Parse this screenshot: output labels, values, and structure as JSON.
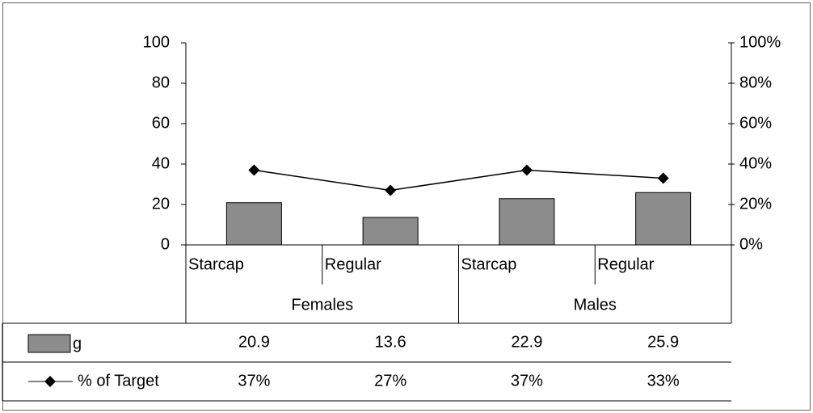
{
  "chart_data": {
    "type": "bar",
    "categories": [
      "Starcap",
      "Regular",
      "Starcap",
      "Regular"
    ],
    "groups": [
      "Females",
      "Males"
    ],
    "series": [
      {
        "name": "g",
        "type": "bar",
        "color": "#8c8c8c",
        "values": [
          20.9,
          13.6,
          22.9,
          25.9
        ]
      },
      {
        "name": "% of Target",
        "type": "line",
        "axis": "y2",
        "color": "#000000",
        "values": [
          37,
          27,
          37,
          33
        ],
        "value_labels": [
          "37%",
          "27%",
          "37%",
          "33%"
        ]
      }
    ],
    "ylim": [
      0,
      100
    ],
    "yticks": [
      0,
      20,
      40,
      60,
      80,
      100
    ],
    "y2lim": [
      0,
      100
    ],
    "y2ticks": [
      {
        "value": 0,
        "label": "0%"
      },
      {
        "value": 20,
        "label": "20%"
      },
      {
        "value": 40,
        "label": "40%"
      },
      {
        "value": 60,
        "label": "60%"
      },
      {
        "value": 80,
        "label": "80%"
      },
      {
        "value": 100,
        "label": "100%"
      }
    ]
  }
}
